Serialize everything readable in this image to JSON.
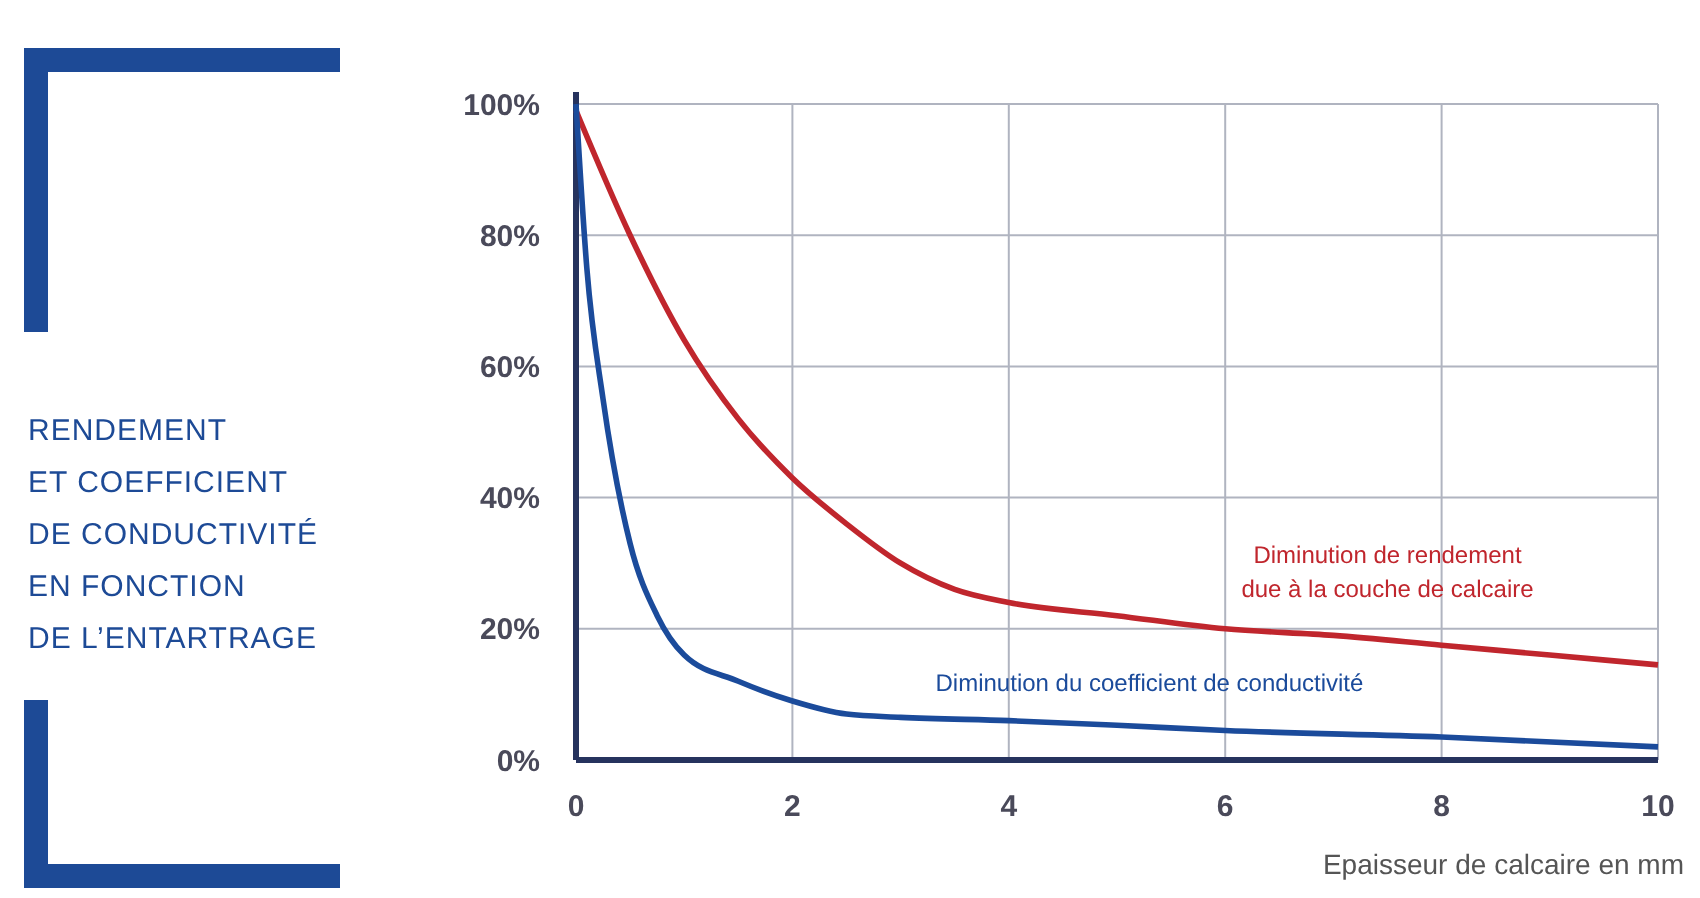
{
  "chart_data": {
    "type": "line",
    "title": "RENDEMENT\nET COEFFICIENT\nDE CONDUCTIVITÉ\nEN FONCTION\nDE L’ENTARTRAGE",
    "xlabel": "Epaisseur de calcaire en mm",
    "xlim": [
      0,
      10
    ],
    "xticks": [
      0,
      2,
      4,
      6,
      8,
      10
    ],
    "ylim": [
      0,
      100
    ],
    "yticks": [
      {
        "value": 0,
        "label": "0%"
      },
      {
        "value": 20,
        "label": "20%"
      },
      {
        "value": 40,
        "label": "40%"
      },
      {
        "value": 60,
        "label": "60%"
      },
      {
        "value": 80,
        "label": "80%"
      },
      {
        "value": 100,
        "label": "100%"
      }
    ],
    "grid": true,
    "marker": "none",
    "line_style": "solid",
    "series": [
      {
        "name": "Diminution de rendement due à la couche de calcaire",
        "color": "#c0262d",
        "x": [
          0,
          0.5,
          1,
          1.5,
          2,
          2.5,
          3,
          3.5,
          4,
          5,
          6,
          7,
          8,
          9,
          10
        ],
        "values": [
          99,
          80,
          64,
          52,
          43,
          36,
          30,
          26,
          24,
          22,
          20,
          19,
          17.5,
          16,
          14.5
        ]
      },
      {
        "name": "Diminution du coefficient de conductivité",
        "color": "#1b4b9b",
        "x": [
          0,
          0.1,
          0.25,
          0.5,
          0.75,
          1,
          1.5,
          2,
          2.5,
          3,
          4,
          5,
          6,
          8,
          10
        ],
        "values": [
          100,
          75,
          55,
          33,
          22,
          16,
          12,
          9,
          7,
          6.5,
          6,
          5.3,
          4.5,
          3.5,
          2
        ]
      }
    ]
  }
}
